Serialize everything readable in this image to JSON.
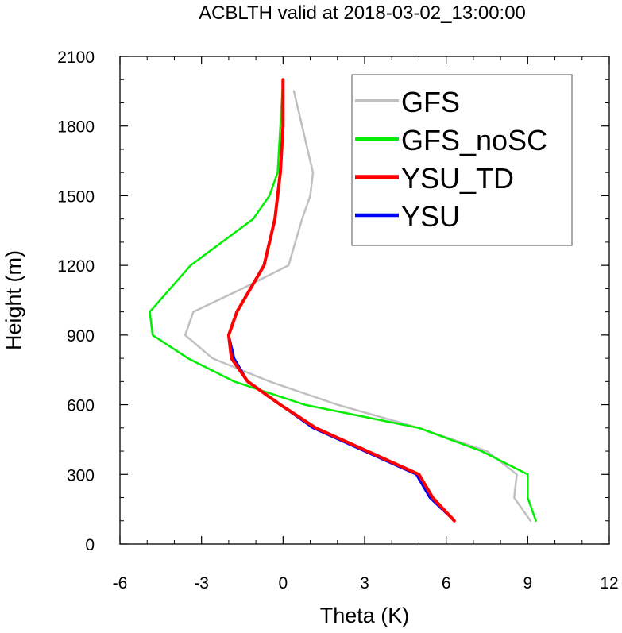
{
  "chart_data": {
    "type": "line",
    "title": "ACBLTH valid at 2018-03-02_13:00:00",
    "xlabel": "Theta (K)",
    "ylabel": "Height (m)",
    "xlim": [
      -6,
      12
    ],
    "ylim": [
      0,
      2100
    ],
    "x_ticks": [
      "-6",
      "-3",
      "0",
      "3",
      "6",
      "9",
      "12"
    ],
    "y_ticks": [
      "0",
      "300",
      "600",
      "900",
      "1200",
      "1500",
      "1800",
      "2100"
    ],
    "grid": false,
    "legend_position": "top-right",
    "series": [
      {
        "name": "GFS",
        "color": "#c0c0c0",
        "points": [
          [
            9.1,
            100
          ],
          [
            8.5,
            200
          ],
          [
            8.6,
            300
          ],
          [
            7.5,
            400
          ],
          [
            5.0,
            500
          ],
          [
            2.0,
            600
          ],
          [
            -0.5,
            700
          ],
          [
            -2.6,
            800
          ],
          [
            -3.6,
            900
          ],
          [
            -3.3,
            1000
          ],
          [
            -1.5,
            1100
          ],
          [
            0.2,
            1200
          ],
          [
            0.7,
            1400
          ],
          [
            1.0,
            1500
          ],
          [
            1.1,
            1600
          ],
          [
            0.9,
            1700
          ],
          [
            0.7,
            1800
          ],
          [
            0.4,
            1950
          ]
        ]
      },
      {
        "name": "GFS_noSC",
        "color": "#00ee00",
        "points": [
          [
            9.3,
            100
          ],
          [
            9.0,
            200
          ],
          [
            9.0,
            300
          ],
          [
            7.3,
            400
          ],
          [
            5.0,
            500
          ],
          [
            0.8,
            600
          ],
          [
            -1.8,
            700
          ],
          [
            -3.5,
            800
          ],
          [
            -4.8,
            900
          ],
          [
            -4.9,
            1000
          ],
          [
            -3.4,
            1200
          ],
          [
            -1.1,
            1400
          ],
          [
            -0.5,
            1500
          ],
          [
            -0.2,
            1600
          ],
          [
            -0.1,
            1800
          ],
          [
            0.0,
            2000
          ]
        ]
      },
      {
        "name": "YSU_TD",
        "color": "#ff0000",
        "points": [
          [
            6.3,
            100
          ],
          [
            5.5,
            200
          ],
          [
            5.0,
            300
          ],
          [
            1.2,
            500
          ],
          [
            -0.1,
            600
          ],
          [
            -1.3,
            700
          ],
          [
            -1.9,
            800
          ],
          [
            -2.0,
            900
          ],
          [
            -1.7,
            1000
          ],
          [
            -0.7,
            1200
          ],
          [
            -0.3,
            1400
          ],
          [
            -0.1,
            1600
          ],
          [
            0.0,
            1800
          ],
          [
            0.0,
            2000
          ]
        ]
      },
      {
        "name": "YSU",
        "color": "#0000ff",
        "points": [
          [
            6.3,
            100
          ],
          [
            5.4,
            200
          ],
          [
            4.9,
            300
          ],
          [
            1.1,
            500
          ],
          [
            -0.1,
            600
          ],
          [
            -1.3,
            700
          ],
          [
            -1.8,
            800
          ],
          [
            -2.0,
            900
          ],
          [
            -1.7,
            1000
          ],
          [
            -0.7,
            1200
          ],
          [
            -0.3,
            1400
          ],
          [
            -0.1,
            1600
          ],
          [
            0.0,
            1800
          ],
          [
            0.0,
            2000
          ]
        ]
      }
    ]
  }
}
